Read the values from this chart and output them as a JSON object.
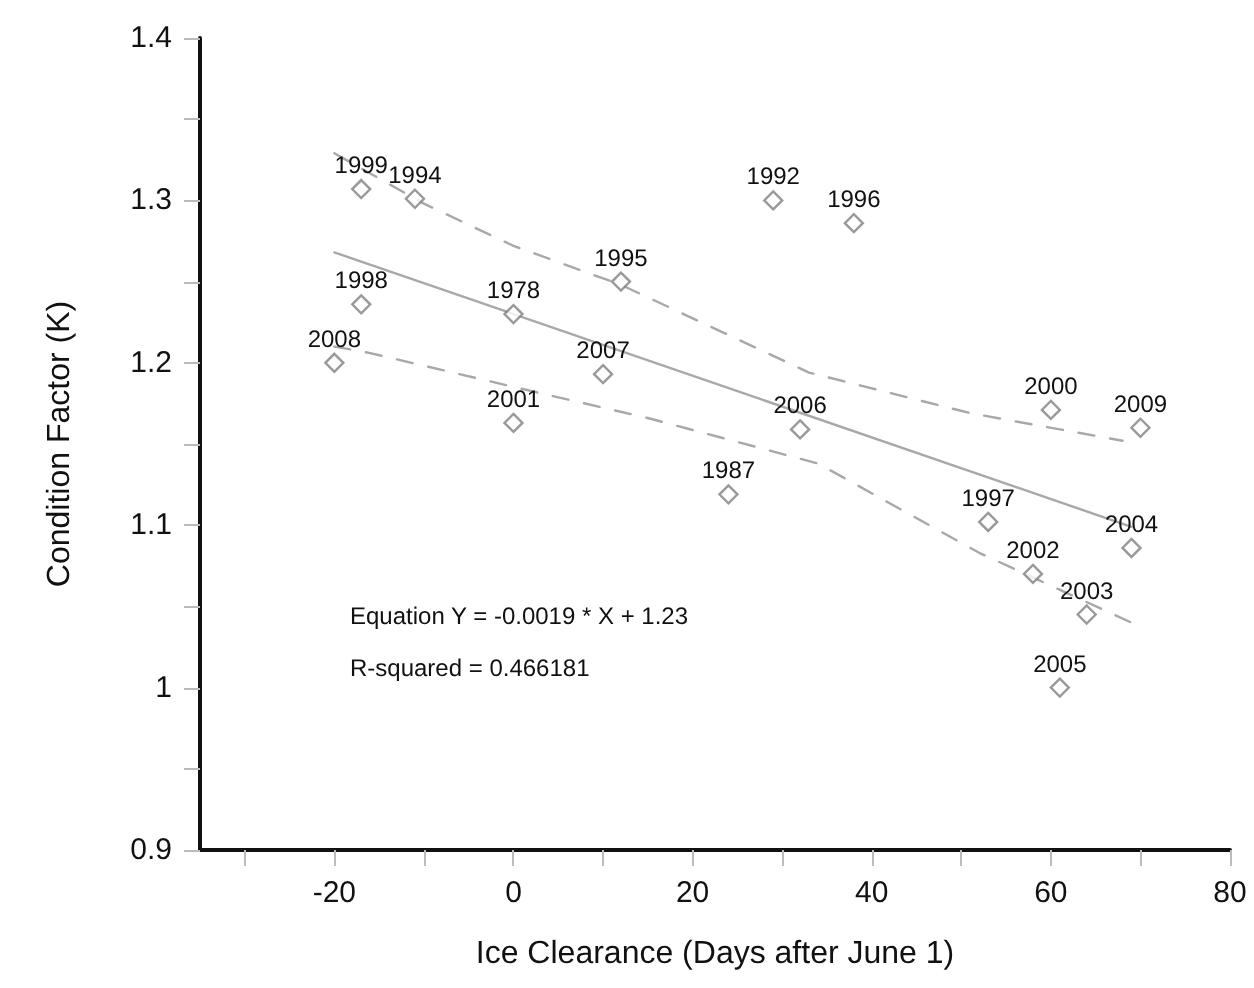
{
  "chart_data": {
    "type": "scatter",
    "xlabel": "Ice Clearance (Days after June 1)",
    "ylabel": "Condition Factor (K)",
    "xlim": [
      -35,
      80
    ],
    "xticks": [
      {
        "value": -30,
        "label": null
      },
      -20,
      {
        "value": -10,
        "label": null
      },
      0,
      {
        "value": 10,
        "label": null
      },
      20,
      {
        "value": 30,
        "label": null
      },
      40,
      {
        "value": 50,
        "label": null
      },
      60,
      {
        "value": 70,
        "label": null
      },
      80
    ],
    "ylim": [
      0.9,
      1.4
    ],
    "yticks": [
      0.9,
      {
        "value": 0.95,
        "label": null
      },
      1,
      {
        "value": 1.05,
        "label": null
      },
      1.1,
      {
        "value": 1.15,
        "label": null
      },
      1.2,
      {
        "value": 1.25,
        "label": null
      },
      1.3,
      {
        "value": 1.35,
        "label": null
      },
      1.4
    ],
    "grid": false,
    "marker": "diamond",
    "series": [
      {
        "color": "#808080",
        "x": [
          -17,
          -11,
          -17,
          0,
          -20,
          0,
          10,
          12,
          29,
          38,
          32,
          24,
          60,
          70,
          53,
          69,
          58,
          64,
          61
        ],
        "values": [
          1.307,
          1.301,
          1.236,
          1.23,
          1.2,
          1.163,
          1.193,
          1.25,
          1.3,
          1.286,
          1.159,
          1.119,
          1.171,
          1.16,
          1.102,
          1.086,
          1.07,
          1.045,
          1.0
        ]
      },
      {
        "type": "line",
        "color": "#a8a8a8",
        "line_style": "solid",
        "marker": "none",
        "x": [
          -20,
          69
        ],
        "values": [
          1.268,
          1.099
        ]
      },
      {
        "type": "line",
        "color": "#a8a8a8",
        "line_style": "dashed",
        "marker": "none",
        "x": [
          -20,
          -10,
          0,
          12,
          33,
          51,
          68
        ],
        "values": [
          1.329,
          1.298,
          1.272,
          1.248,
          1.194,
          1.169,
          1.152
        ]
      },
      {
        "type": "line",
        "color": "#a8a8a8",
        "line_style": "dashed",
        "marker": "none",
        "x": [
          -20,
          -16,
          4,
          15,
          34,
          52,
          69
        ],
        "values": [
          1.21,
          1.206,
          1.18,
          1.166,
          1.138,
          1.083,
          1.04
        ]
      }
    ],
    "annotations": [
      {
        "text": "1999",
        "x": -17,
        "y": 1.307
      },
      {
        "text": "1994",
        "x": -11,
        "y": 1.301
      },
      {
        "text": "1998",
        "x": -17,
        "y": 1.236
      },
      {
        "text": "1978",
        "x": 0,
        "y": 1.23
      },
      {
        "text": "2008",
        "x": -20,
        "y": 1.2
      },
      {
        "text": "2001",
        "x": 0,
        "y": 1.163
      },
      {
        "text": "2007",
        "x": 10,
        "y": 1.193
      },
      {
        "text": "1995",
        "x": 12,
        "y": 1.25
      },
      {
        "text": "1992",
        "x": 29,
        "y": 1.3
      },
      {
        "text": "1996",
        "x": 38,
        "y": 1.286
      },
      {
        "text": "2006",
        "x": 32,
        "y": 1.159
      },
      {
        "text": "1987",
        "x": 24,
        "y": 1.119
      },
      {
        "text": "2000",
        "x": 60,
        "y": 1.171
      },
      {
        "text": "2009",
        "x": 70,
        "y": 1.16
      },
      {
        "text": "1997",
        "x": 53,
        "y": 1.102
      },
      {
        "text": "2004",
        "x": 69,
        "y": 1.086
      },
      {
        "text": "2002",
        "x": 58,
        "y": 1.07
      },
      {
        "text": "2003",
        "x": 64,
        "y": 1.045
      },
      {
        "text": "2005",
        "x": 61,
        "y": 1.0
      },
      "Equation Y = -0.0019 * X + 1.23",
      "R-squared = 0.466181"
    ]
  }
}
